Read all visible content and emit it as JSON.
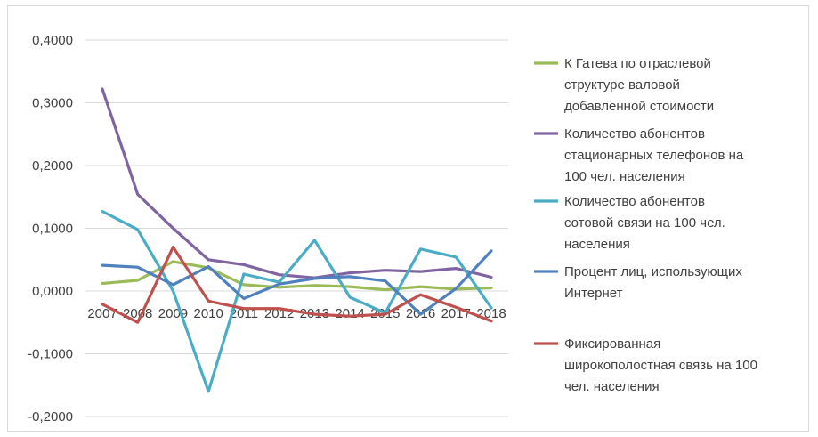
{
  "chart_data": {
    "type": "line",
    "title": "",
    "xlabel": "",
    "ylabel": "",
    "ylim": [
      -0.2,
      0.4
    ],
    "yticks": [
      "0,4000",
      "0,3000",
      "0,2000",
      "0,1000",
      "0,0000",
      "-0,1000",
      "-0,2000"
    ],
    "ytick_values": [
      0.4,
      0.3,
      0.2,
      0.1,
      0.0,
      -0.1,
      -0.2
    ],
    "x": [
      "2007",
      "2008",
      "2009",
      "2010",
      "2011",
      "2012",
      "2013",
      "2014",
      "2015",
      "2016",
      "2017",
      "2018"
    ],
    "grid": true,
    "legend_position": "right",
    "series": [
      {
        "name_lines": [
          "К Гатева по отраслевой",
          "структуре валовой",
          "добавленной стоимости"
        ],
        "color": "#9bbb59",
        "values": [
          0.012,
          0.017,
          0.047,
          0.037,
          0.01,
          0.006,
          0.009,
          0.007,
          0.002,
          0.007,
          0.003,
          0.005
        ]
      },
      {
        "name_lines": [
          "Количество абонентов",
          "стационарных телефонов на",
          "100 чел. населения"
        ],
        "color": "#8064a2",
        "values": [
          0.322,
          0.154,
          0.1,
          0.05,
          0.042,
          0.026,
          0.021,
          0.029,
          0.033,
          0.031,
          0.036,
          0.022
        ]
      },
      {
        "name_lines": [
          "Количество абонентов",
          "сотовой связи на 100 чел.",
          "населения"
        ],
        "color": "#4bacc6",
        "values": [
          0.127,
          0.098,
          0.0,
          -0.16,
          0.027,
          0.014,
          0.081,
          -0.01,
          -0.035,
          0.067,
          0.054,
          -0.027
        ]
      },
      {
        "name_lines": [
          "Процент лиц, использующих",
          "Интернет"
        ],
        "color": "#4f81bd",
        "values": [
          0.041,
          0.038,
          0.01,
          0.039,
          -0.012,
          0.011,
          0.02,
          0.023,
          0.016,
          -0.037,
          0.004,
          0.064
        ]
      },
      {
        "name_lines": [
          "Фиксированная",
          "широкополостная связь на 100",
          "чел. населения"
        ],
        "color": "#c0504d",
        "values": [
          -0.021,
          -0.05,
          0.07,
          -0.016,
          -0.028,
          -0.028,
          -0.037,
          -0.04,
          -0.037,
          -0.006,
          -0.026,
          -0.048
        ]
      }
    ]
  }
}
